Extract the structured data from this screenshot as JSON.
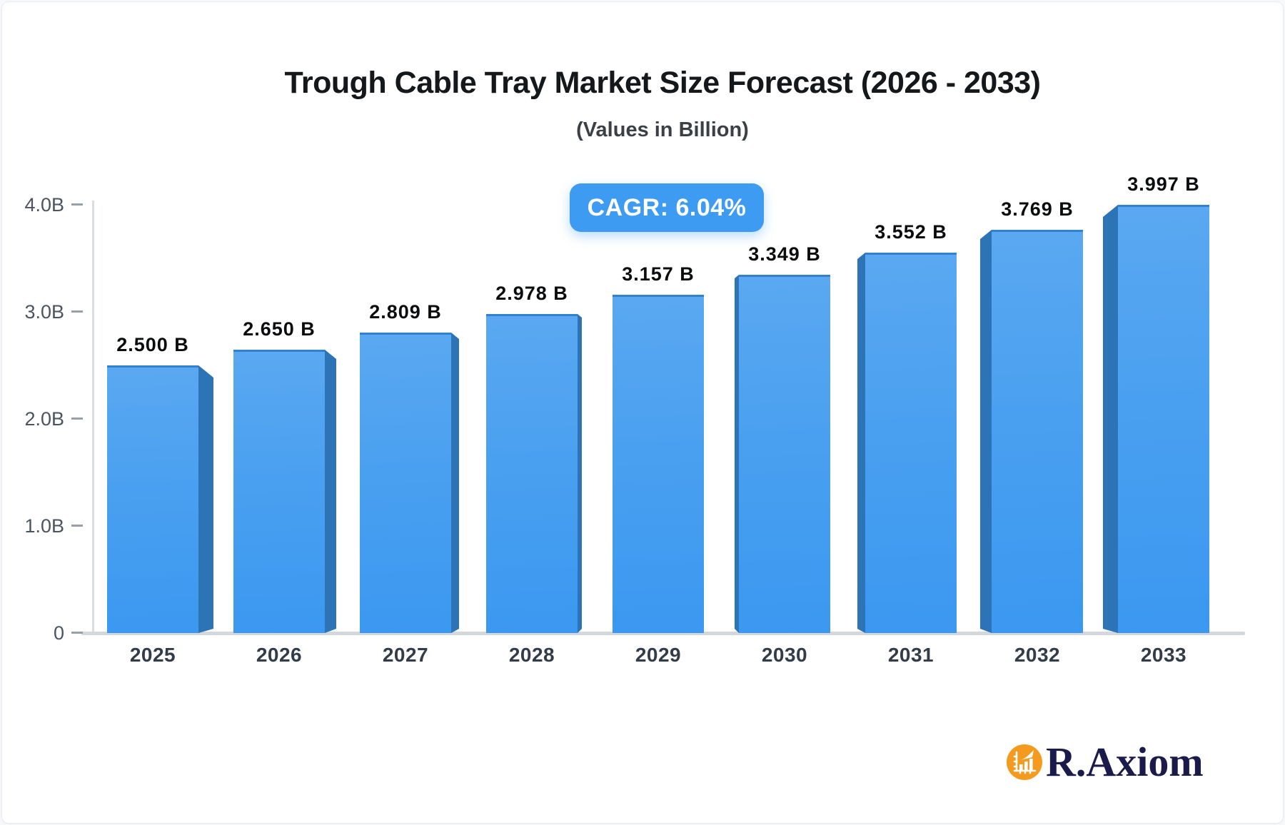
{
  "title": "Trough Cable Tray Market Size Forecast (2026 - 2033)",
  "subtitle": "(Values in Billion)",
  "cagr_badge_label": "CAGR: 6.04%",
  "brand": {
    "name": "R.Axiom",
    "icon": "bar-chart-growth-icon",
    "circle_color": "#F49A1F",
    "text_color": "#1A1B4B"
  },
  "colors": {
    "bar_face_top": "#5AA8F1",
    "bar_face_bottom": "#3B98F0",
    "bar_side": "#2C74B5",
    "badge_blue": "#3D9BF1",
    "axis_gray": "#D6DADE",
    "title_text": "#15181B"
  },
  "chart_data": {
    "type": "bar",
    "style": "3d-perspective-bars",
    "title": "Trough Cable Tray Market Size Forecast (2026 - 2033)",
    "subtitle": "(Values in Billion)",
    "cagr": "6.04%",
    "categories": [
      "2025",
      "2026",
      "2027",
      "2028",
      "2029",
      "2030",
      "2031",
      "2032",
      "2033"
    ],
    "values": [
      2.5,
      2.65,
      2.809,
      2.978,
      3.157,
      3.349,
      3.552,
      3.769,
      3.997
    ],
    "bar_labels": [
      "2.500 B",
      "2.650 B",
      "2.809 B",
      "2.978 B",
      "3.157 B",
      "3.349 B",
      "3.552 B",
      "3.769 B",
      "3.997 B"
    ],
    "unit": "Billion",
    "xlabel": "",
    "ylabel": "",
    "ylim": [
      0,
      4
    ],
    "yticks": [
      {
        "value": 0,
        "label": "0"
      },
      {
        "value": 1,
        "label": "1.0B"
      },
      {
        "value": 2,
        "label": "2.0B"
      },
      {
        "value": 3,
        "label": "3.0B"
      },
      {
        "value": 4,
        "label": "4.0B"
      }
    ],
    "grid": false,
    "legend": false
  }
}
